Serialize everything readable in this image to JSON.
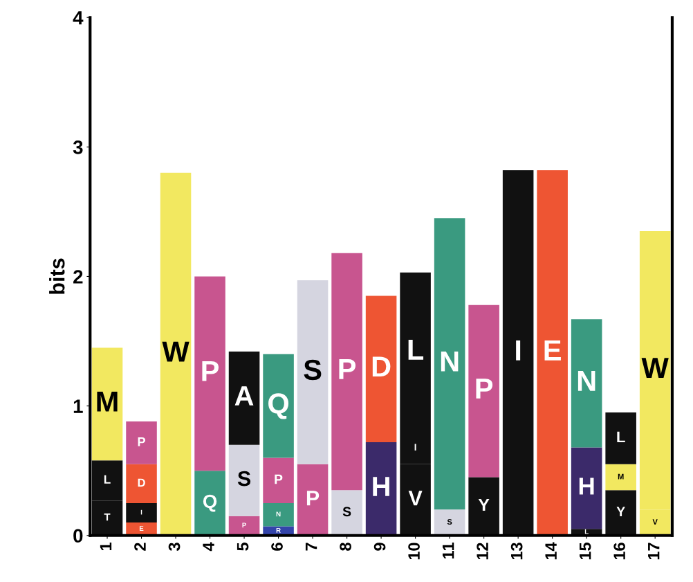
{
  "chart_data": {
    "type": "bar",
    "stacked": true,
    "ylabel": "bits",
    "ylim": [
      0,
      4
    ],
    "yticks": [
      0,
      1,
      2,
      3,
      4
    ],
    "grid": false,
    "legend": false,
    "categories": [
      "1",
      "2",
      "3",
      "4",
      "5",
      "6",
      "7",
      "8",
      "9",
      "10",
      "11",
      "12",
      "13",
      "14",
      "15",
      "16",
      "17"
    ],
    "series": [
      {
        "values": [
          0.27,
          0.1,
          2.8,
          0.5,
          0.15,
          0.07,
          0.55,
          0.35,
          0.72,
          0.55,
          0.2,
          0.45,
          2.82,
          2.82,
          0.05,
          0.35,
          0.2
        ],
        "colors": [
          "#111111",
          "#ee5533",
          "#f2e860",
          "#3a9a80",
          "#c8558f",
          "#3344aa",
          "#c8558f",
          "#d5d5e0",
          "#3b2a6a",
          "#111111",
          "#d5d5e0",
          "#111111",
          "#111111",
          "#ee5533",
          "#111111",
          "#111111",
          "#f2e860"
        ],
        "value_labels": [
          "T",
          "E",
          "W",
          "Q",
          "P",
          "R",
          "P",
          "S",
          "H",
          "V",
          "S",
          "Y",
          "I",
          "E",
          "L",
          "Y",
          "V"
        ]
      },
      {
        "values": [
          0.31,
          0.15,
          null,
          1.5,
          0.55,
          0.18,
          1.42,
          1.83,
          1.13,
          0.25,
          2.25,
          1.33,
          null,
          null,
          0.63,
          0.2,
          2.15
        ],
        "colors": [
          "#111111",
          "#111111",
          null,
          "#c8558f",
          "#d5d5e0",
          "#3a9a80",
          "#d5d5e0",
          "#c8558f",
          "#ee5533",
          "#111111",
          "#3a9a80",
          "#c8558f",
          null,
          null,
          "#3b2a6a",
          "#f2e860",
          "#f2e860"
        ],
        "value_labels": [
          "L",
          "I",
          null,
          "P",
          "S",
          "N",
          "S",
          "P",
          "D",
          "I",
          "N",
          "P",
          null,
          null,
          "H",
          "M",
          "W"
        ]
      },
      {
        "values": [
          0.87,
          0.3,
          null,
          null,
          0.72,
          0.35,
          null,
          null,
          null,
          1.23,
          null,
          null,
          null,
          null,
          0.99,
          0.4,
          null
        ],
        "colors": [
          "#f2e860",
          "#ee5533",
          null,
          null,
          "#111111",
          "#c8558f",
          null,
          null,
          null,
          "#111111",
          null,
          null,
          null,
          null,
          "#3a9a80",
          "#111111",
          null
        ],
        "value_labels": [
          "M",
          "D",
          null,
          null,
          "A",
          "P",
          null,
          null,
          null,
          "L",
          null,
          null,
          null,
          null,
          "N",
          "L",
          null
        ]
      },
      {
        "values": [
          null,
          0.33,
          null,
          null,
          null,
          0.8,
          null,
          null,
          null,
          null,
          null,
          null,
          null,
          null,
          null,
          null,
          null
        ],
        "colors": [
          null,
          "#c8558f",
          null,
          null,
          null,
          "#3a9a80",
          null,
          null,
          null,
          null,
          null,
          null,
          null,
          null,
          null,
          null,
          null
        ],
        "value_labels": [
          null,
          "P",
          null,
          null,
          null,
          "Q",
          null,
          null,
          null,
          null,
          null,
          null,
          null,
          null,
          null,
          null,
          null
        ]
      }
    ]
  }
}
